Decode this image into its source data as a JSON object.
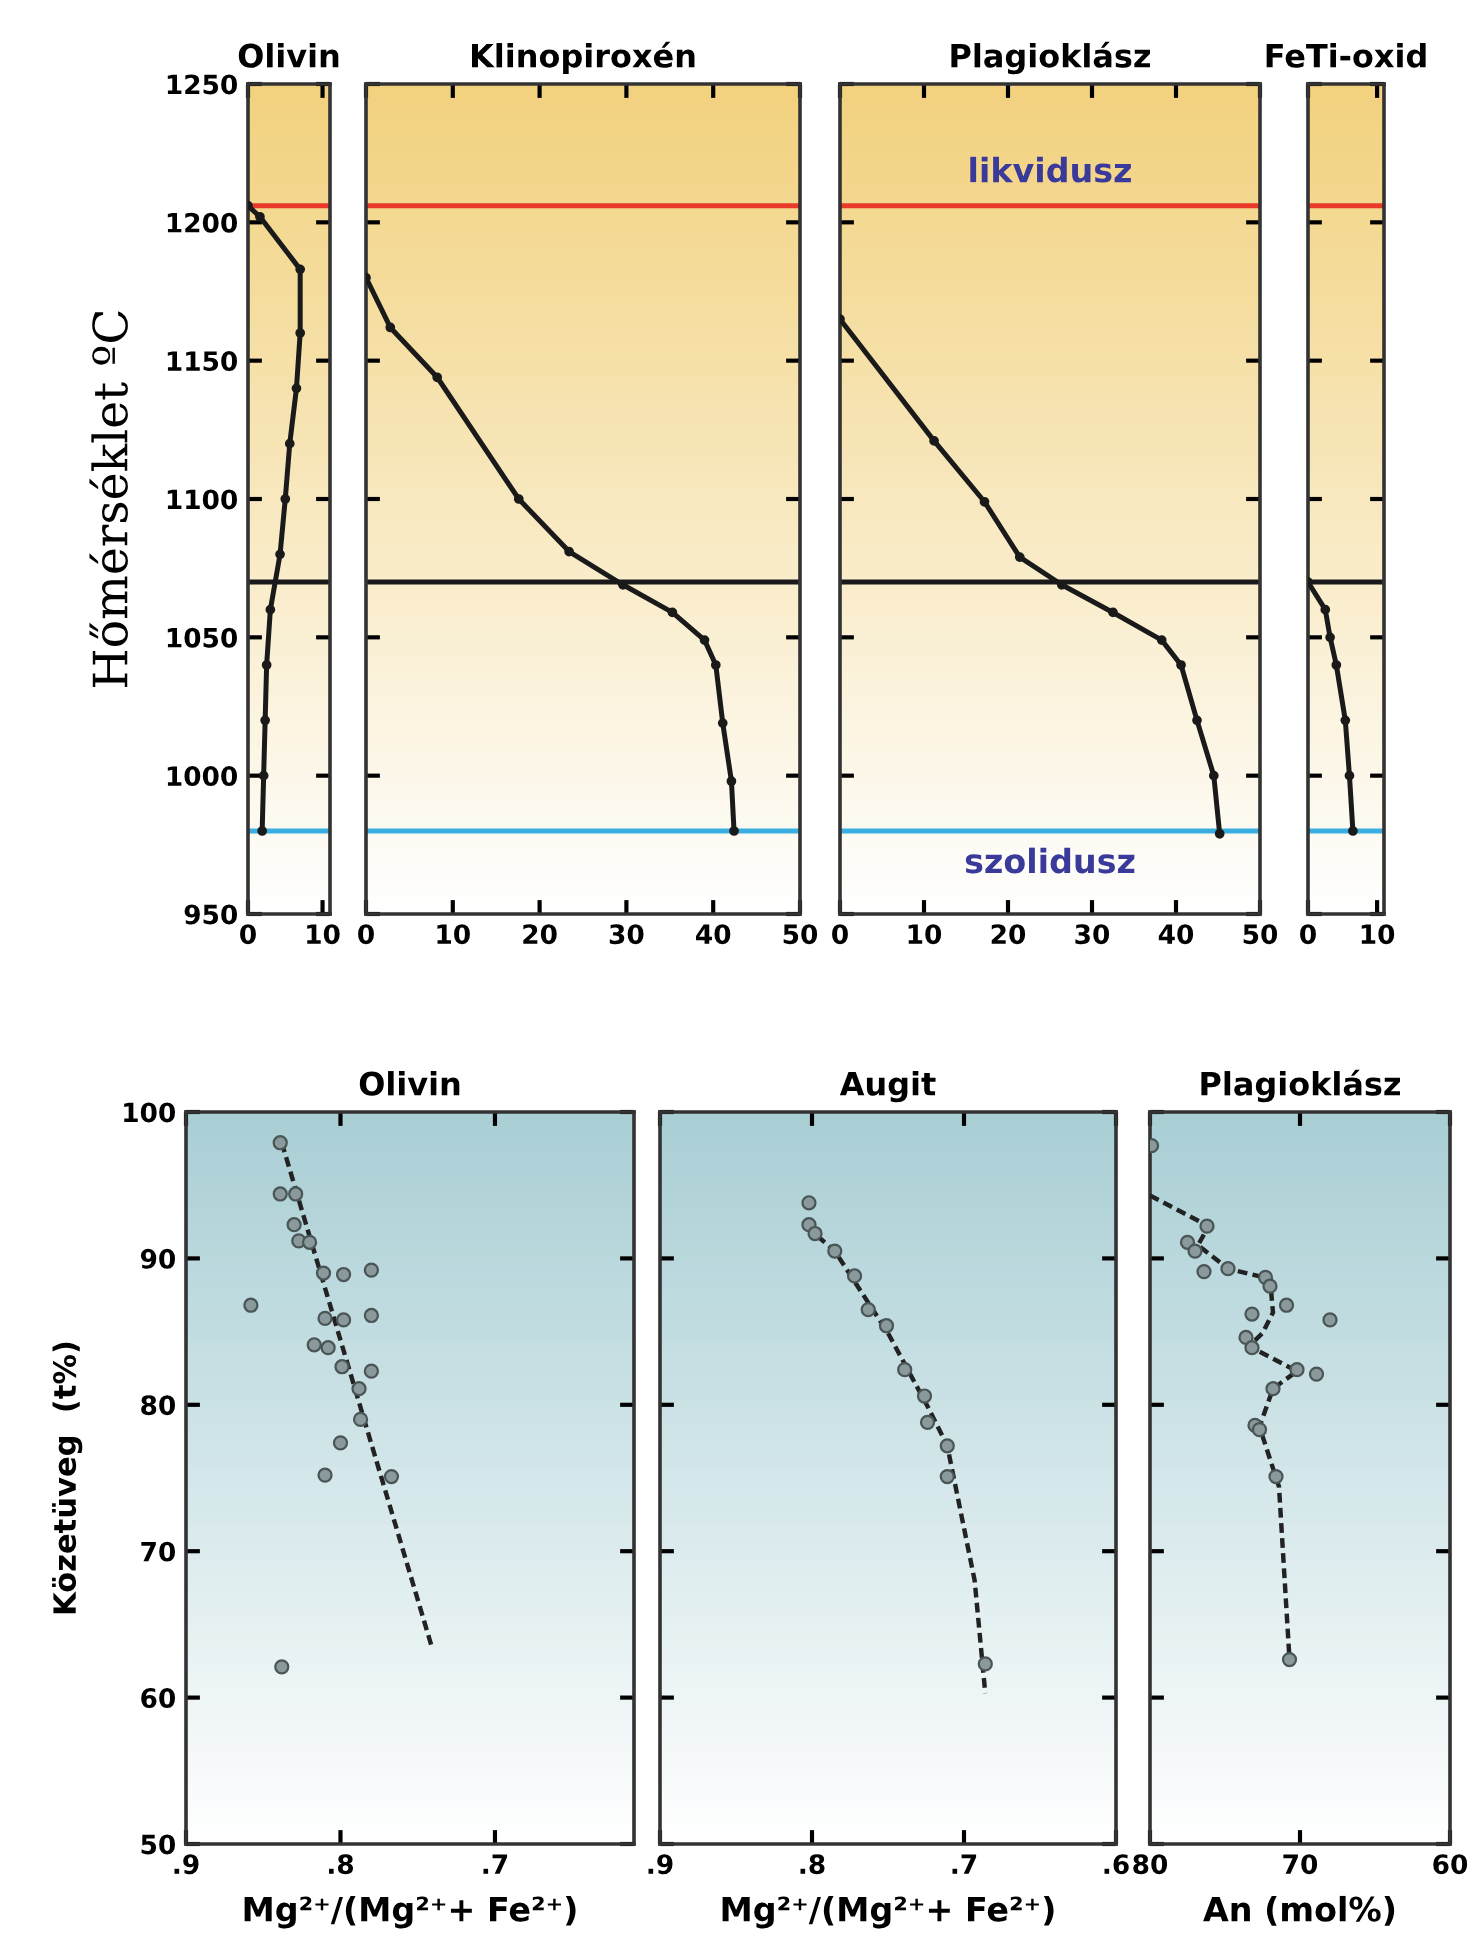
{
  "chart_data": [
    {
      "type": "line",
      "title": "Olivin",
      "ylabel": "Hőmérséklet ºC",
      "xlim": [
        0,
        11
      ],
      "xticks": [
        0,
        10
      ],
      "ylim": [
        950,
        1250
      ],
      "yticks": [
        950,
        1000,
        1050,
        1100,
        1150,
        1200,
        1250
      ],
      "series": [
        {
          "color": "#1a1a1a",
          "marker": "circle",
          "line_style": "solid",
          "x": [
            0,
            1.6,
            7.0,
            7.0,
            6.5,
            5.6,
            5.0,
            4.3,
            3.0,
            2.5,
            2.3,
            2.1,
            1.9
          ],
          "values": [
            1206,
            1202,
            1183,
            1160,
            1140,
            1120,
            1100,
            1080,
            1060,
            1040,
            1020,
            1000,
            980
          ]
        }
      ],
      "ref_lines": [
        {
          "axis": "y",
          "value": 1206,
          "color": "#e8392b"
        },
        {
          "axis": "y",
          "value": 1070,
          "color": "#1a1a1a"
        },
        {
          "axis": "y",
          "value": 980,
          "color": "#3aaee0"
        }
      ]
    },
    {
      "type": "line",
      "title": "Klinopiroxén",
      "xlim": [
        0,
        50
      ],
      "xticks": [
        0,
        10,
        20,
        30,
        40,
        50
      ],
      "ylim": [
        950,
        1250
      ],
      "yticks": [
        950,
        1000,
        1050,
        1100,
        1150,
        1200,
        1250
      ],
      "tick_labels": "x",
      "series": [
        {
          "color": "#1a1a1a",
          "marker": "circle",
          "line_style": "solid",
          "x": [
            0,
            2.8,
            8.2,
            17.6,
            23.4,
            29.6,
            35.3,
            39.0,
            40.3,
            41.1,
            42.1,
            42.4
          ],
          "values": [
            1180,
            1162,
            1144,
            1100,
            1081,
            1069,
            1059,
            1049,
            1040,
            1019,
            998,
            980
          ]
        }
      ],
      "ref_lines": [
        {
          "axis": "y",
          "value": 1206,
          "color": "#e8392b"
        },
        {
          "axis": "y",
          "value": 1070,
          "color": "#1a1a1a"
        },
        {
          "axis": "y",
          "value": 980,
          "color": "#3aaee0"
        }
      ]
    },
    {
      "type": "line",
      "title": "Plagioklász",
      "xlim": [
        0,
        50
      ],
      "xticks": [
        0,
        10,
        20,
        30,
        40,
        50
      ],
      "ylim": [
        950,
        1250
      ],
      "yticks": [
        950,
        1000,
        1050,
        1100,
        1150,
        1200,
        1250
      ],
      "tick_labels": "x",
      "series": [
        {
          "color": "#1a1a1a",
          "marker": "circle",
          "line_style": "solid",
          "x": [
            0,
            11.2,
            17.2,
            21.4,
            26.4,
            32.5,
            38.3,
            40.6,
            42.5,
            44.5,
            45.2
          ],
          "values": [
            1165,
            1121,
            1099,
            1079,
            1069,
            1059,
            1049,
            1040,
            1020,
            1000,
            979
          ]
        }
      ],
      "ref_lines": [
        {
          "axis": "y",
          "value": 1206,
          "color": "#e8392b",
          "label": "likvidusz"
        },
        {
          "axis": "y",
          "value": 1070,
          "color": "#1a1a1a"
        },
        {
          "axis": "y",
          "value": 980,
          "color": "#3aaee0",
          "label": "szolidusz"
        }
      ]
    },
    {
      "type": "line",
      "title": "FeTi-oxid",
      "xlim": [
        0,
        11
      ],
      "xticks": [
        0,
        10
      ],
      "ylim": [
        950,
        1250
      ],
      "yticks": [
        950,
        1000,
        1050,
        1100,
        1150,
        1200,
        1250
      ],
      "tick_labels": "x",
      "series": [
        {
          "color": "#1a1a1a",
          "marker": "circle",
          "line_style": "solid",
          "x": [
            0,
            2.5,
            3.2,
            4.1,
            5.4,
            6.0,
            6.5
          ],
          "values": [
            1070,
            1060,
            1050,
            1040,
            1020,
            1000,
            980
          ]
        }
      ],
      "ref_lines": [
        {
          "axis": "y",
          "value": 1206,
          "color": "#e8392b"
        },
        {
          "axis": "y",
          "value": 1070,
          "color": "#1a1a1a"
        },
        {
          "axis": "y",
          "value": 980,
          "color": "#3aaee0"
        }
      ]
    },
    {
      "type": "scatter",
      "title": "Olivin",
      "xlabel": "Mg²⁺/(Mg²⁺+ Fe²⁺)",
      "ylabel": "Közetüveg  (t%)",
      "xlim": [
        0.9,
        0.61
      ],
      "xticks": [
        {
          "value": 0.9,
          "label": ".9"
        },
        {
          "value": 0.8,
          "label": ".8"
        },
        {
          "value": 0.7,
          "label": ".7"
        }
      ],
      "ylim": [
        50,
        100
      ],
      "yticks": [
        50,
        60,
        70,
        80,
        90,
        100
      ],
      "series": [
        {
          "color": "#8a9a9c",
          "marker": "circle",
          "x": [
            0.839,
            0.839,
            0.829,
            0.83,
            0.827,
            0.82,
            0.811,
            0.798,
            0.78,
            0.858,
            0.81,
            0.798,
            0.78,
            0.817,
            0.808,
            0.799,
            0.78,
            0.788,
            0.787,
            0.8,
            0.81,
            0.767,
            0.838
          ],
          "values": [
            97.9,
            94.4,
            94.4,
            92.3,
            91.2,
            91.1,
            89.0,
            88.9,
            89.2,
            86.8,
            85.9,
            85.8,
            86.1,
            84.1,
            83.9,
            82.6,
            82.3,
            81.1,
            79.0,
            77.4,
            75.2,
            75.1,
            62.1
          ]
        },
        {
          "type": "line",
          "color": "#222222",
          "line_style": "dashed",
          "marker": "none",
          "x": [
            0.838,
            0.741
          ],
          "values": [
            97.9,
            63.5
          ]
        }
      ]
    },
    {
      "type": "scatter",
      "title": "Augit",
      "xlabel": "Mg²⁺/(Mg²⁺+ Fe²⁺)",
      "xlim": [
        0.9,
        0.6
      ],
      "xticks": [
        {
          "value": 0.9,
          "label": ".9"
        },
        {
          "value": 0.8,
          "label": ".8"
        },
        {
          "value": 0.7,
          "label": ".7"
        },
        {
          "value": 0.6,
          "label": ".6"
        }
      ],
      "ylim": [
        50,
        100
      ],
      "yticks": [
        50,
        60,
        70,
        80,
        90,
        100
      ],
      "tick_labels": "x",
      "series": [
        {
          "color": "#8a9a9c",
          "marker": "circle",
          "x": [
            0.802,
            0.802,
            0.798,
            0.785,
            0.772,
            0.763,
            0.751,
            0.739,
            0.726,
            0.724,
            0.711,
            0.711,
            0.686
          ],
          "values": [
            93.8,
            92.3,
            91.7,
            90.5,
            88.8,
            86.5,
            85.4,
            82.4,
            80.6,
            78.8,
            77.2,
            75.1,
            62.3
          ]
        },
        {
          "type": "line",
          "color": "#222222",
          "line_style": "dashed",
          "marker": "none",
          "x": [
            0.804,
            0.785,
            0.75,
            0.724,
            0.711,
            0.702,
            0.693,
            0.686
          ],
          "values": [
            92.2,
            90.5,
            84.9,
            79.9,
            77.2,
            72.6,
            68.0,
            60.3
          ]
        }
      ]
    },
    {
      "type": "scatter",
      "title": "Plagioklász",
      "xlabel": "An (mol%)",
      "xlim": [
        80,
        60
      ],
      "xticks": [
        80,
        70,
        60
      ],
      "ylim": [
        50,
        100
      ],
      "yticks": [
        50,
        60,
        70,
        80,
        90,
        100
      ],
      "tick_labels": "x",
      "series": [
        {
          "color": "#8a9a9c",
          "marker": "circle",
          "x": [
            79.9,
            76.2,
            77.5,
            77.0,
            76.4,
            74.8,
            72.3,
            72.0,
            70.9,
            73.2,
            68.0,
            73.6,
            73.2,
            70.2,
            68.9,
            71.8,
            73.0,
            72.7,
            71.6,
            70.7
          ],
          "values": [
            97.7,
            92.2,
            91.1,
            90.5,
            89.1,
            89.3,
            88.7,
            88.1,
            86.8,
            86.2,
            85.8,
            84.6,
            83.9,
            82.4,
            82.1,
            81.1,
            78.6,
            78.3,
            75.1,
            62.6
          ]
        },
        {
          "type": "line",
          "color": "#222222",
          "line_style": "dashed",
          "marker": "none",
          "x": [
            80,
            76.1,
            76.8,
            74.8,
            72.0,
            71.8,
            72.5,
            73.4,
            70.2,
            71.8,
            72.7,
            71.4,
            70.7
          ],
          "values": [
            94.3,
            92.2,
            90.9,
            89.3,
            88.6,
            86.3,
            84.9,
            84.0,
            82.3,
            81.1,
            78.5,
            74.4,
            62.6
          ]
        }
      ]
    }
  ]
}
